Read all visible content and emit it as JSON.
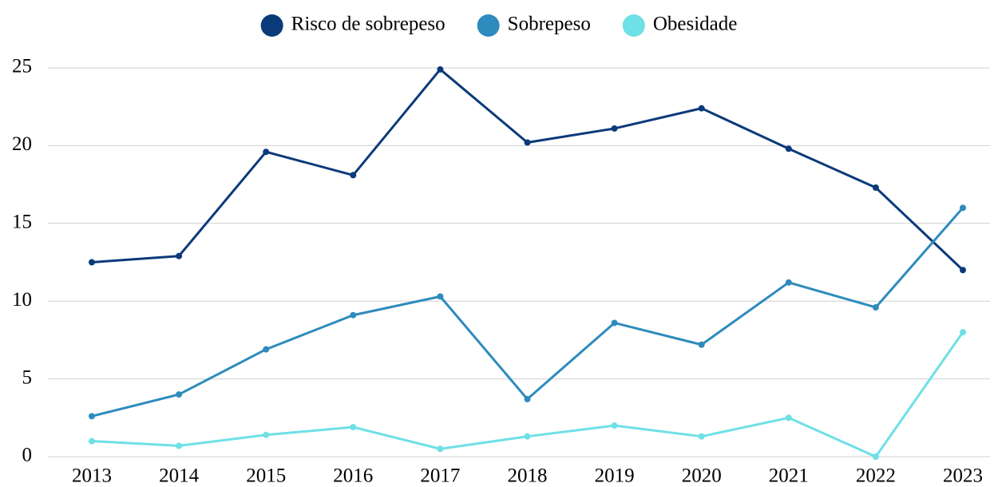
{
  "chart_data": {
    "type": "line",
    "categories": [
      "2013",
      "2014",
      "2015",
      "2016",
      "2017",
      "2018",
      "2019",
      "2020",
      "2021",
      "2022",
      "2023"
    ],
    "series": [
      {
        "name": "Risco de sobrepeso",
        "color": "#0b3a7a",
        "values": [
          12.5,
          12.9,
          19.6,
          18.1,
          24.9,
          20.2,
          21.1,
          22.4,
          19.8,
          17.3,
          12.0
        ]
      },
      {
        "name": "Sobrepeso",
        "color": "#2e8bbd",
        "values": [
          2.6,
          4.0,
          6.9,
          9.1,
          10.3,
          3.7,
          8.6,
          7.2,
          11.2,
          9.6,
          16.0
        ]
      },
      {
        "name": "Obesidade",
        "color": "#6ee0e6",
        "values": [
          1.0,
          0.7,
          1.4,
          1.9,
          0.5,
          1.3,
          2.0,
          1.3,
          2.5,
          0,
          8.0
        ]
      }
    ],
    "ylim": [
      0,
      25
    ],
    "yticks": [
      0,
      5,
      10,
      15,
      20,
      25
    ],
    "grid": true,
    "legend": "top"
  }
}
